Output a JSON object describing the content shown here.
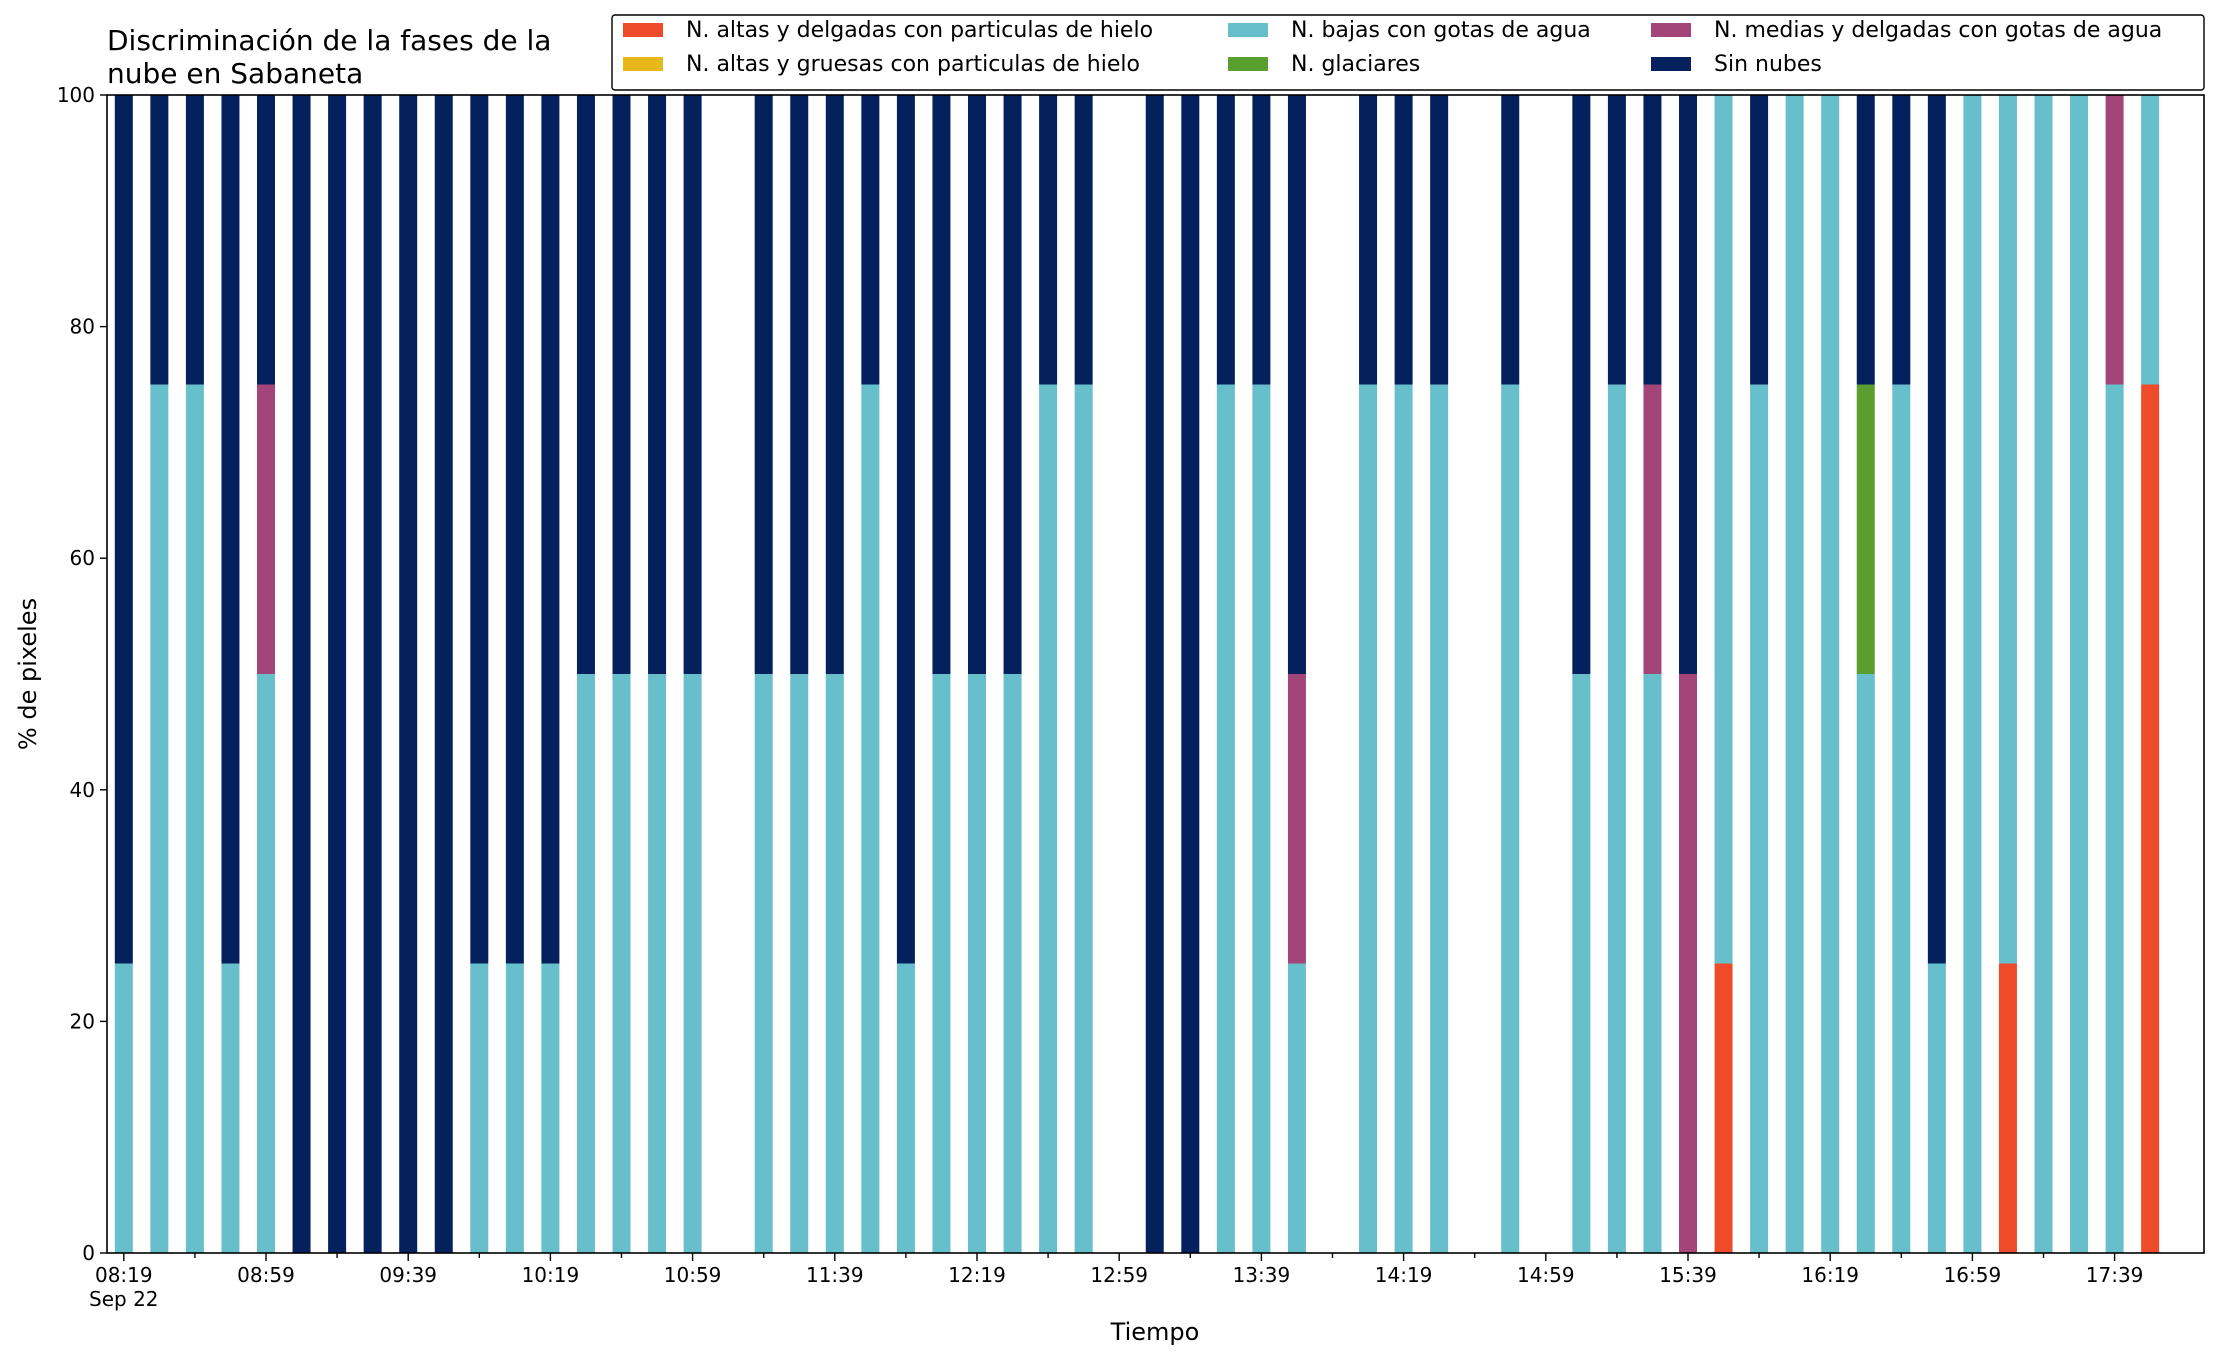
{
  "chart_data": {
    "type": "bar",
    "stacked": true,
    "title": "Discriminación de la fases de la\nnube en Sabaneta",
    "xlabel": "Tiempo",
    "ylabel": "% de pixeles",
    "ylim": [
      0,
      100
    ],
    "yticks": [
      0,
      20,
      40,
      60,
      80,
      100
    ],
    "grid": false,
    "legend_position": "top-right",
    "xtick_labels": [
      "08:19\nSep 22",
      "08:59",
      "09:39",
      "10:19",
      "10:59",
      "11:39",
      "12:19",
      "12:59",
      "13:39",
      "14:19",
      "14:59",
      "15:39",
      "16:19",
      "16:59",
      "17:39"
    ],
    "categories": [
      "08:19",
      "08:29",
      "08:39",
      "08:49",
      "08:59",
      "09:09",
      "09:19",
      "09:29",
      "09:39",
      "09:49",
      "09:59",
      "10:09",
      "10:19",
      "10:29",
      "10:39",
      "10:49",
      "10:59",
      "11:09",
      "11:19",
      "11:29",
      "11:39",
      "11:49",
      "11:59",
      "12:09",
      "12:19",
      "12:29",
      "12:39",
      "12:49",
      "12:59",
      "13:09",
      "13:19",
      "13:29",
      "13:39",
      "13:49",
      "13:59",
      "14:09",
      "14:19",
      "14:29",
      "14:39",
      "14:49",
      "14:59",
      "15:09",
      "15:19",
      "15:29",
      "15:39",
      "15:49",
      "15:59",
      "16:09",
      "16:19",
      "16:29",
      "16:39",
      "16:49",
      "16:59",
      "17:09",
      "17:19",
      "17:29",
      "17:39",
      "17:49"
    ],
    "series": [
      {
        "name": "N. altas y delgadas con particulas de hielo",
        "color": "#ee4b2b",
        "values": [
          0,
          0,
          0,
          0,
          0,
          0,
          0,
          0,
          0,
          0,
          0,
          0,
          0,
          0,
          0,
          0,
          0,
          0,
          0,
          0,
          0,
          0,
          0,
          0,
          0,
          0,
          0,
          0,
          0,
          0,
          0,
          0,
          0,
          0,
          0,
          0,
          0,
          0,
          0,
          0,
          0,
          0,
          0,
          0,
          0,
          25,
          0,
          0,
          0,
          0,
          0,
          0,
          0,
          25,
          0,
          0,
          0,
          75
        ]
      },
      {
        "name": "N. altas y gruesas con particulas de hielo",
        "color": "#e6b81a",
        "values": [
          0,
          0,
          0,
          0,
          0,
          0,
          0,
          0,
          0,
          0,
          0,
          0,
          0,
          0,
          0,
          0,
          0,
          0,
          0,
          0,
          0,
          0,
          0,
          0,
          0,
          0,
          0,
          0,
          0,
          0,
          0,
          0,
          0,
          0,
          0,
          0,
          0,
          0,
          0,
          0,
          0,
          0,
          0,
          0,
          0,
          0,
          0,
          0,
          0,
          0,
          0,
          0,
          0,
          0,
          0,
          0,
          0,
          0
        ]
      },
      {
        "name": "N. bajas con gotas de agua",
        "color": "#66bfcb",
        "values": [
          25,
          75,
          75,
          25,
          50,
          0,
          0,
          0,
          0,
          0,
          25,
          25,
          25,
          50,
          50,
          50,
          50,
          0,
          50,
          50,
          50,
          75,
          25,
          50,
          50,
          50,
          75,
          75,
          0,
          0,
          0,
          75,
          75,
          25,
          0,
          75,
          75,
          75,
          0,
          75,
          0,
          50,
          75,
          50,
          0,
          75,
          75,
          100,
          100,
          50,
          75,
          25,
          100,
          75,
          100,
          100,
          75,
          25
        ]
      },
      {
        "name": "N. glaciares",
        "color": "#5a9e2f",
        "values": [
          0,
          0,
          0,
          0,
          0,
          0,
          0,
          0,
          0,
          0,
          0,
          0,
          0,
          0,
          0,
          0,
          0,
          0,
          0,
          0,
          0,
          0,
          0,
          0,
          0,
          0,
          0,
          0,
          0,
          0,
          0,
          0,
          0,
          0,
          0,
          0,
          0,
          0,
          0,
          0,
          0,
          0,
          0,
          0,
          0,
          0,
          0,
          0,
          0,
          25,
          0,
          0,
          0,
          0,
          0,
          0,
          0,
          0
        ]
      },
      {
        "name": "N. medias y delgadas con gotas de agua",
        "color": "#a34579",
        "values": [
          0,
          0,
          0,
          0,
          25,
          0,
          0,
          0,
          0,
          0,
          0,
          0,
          0,
          0,
          0,
          0,
          0,
          0,
          0,
          0,
          0,
          0,
          0,
          0,
          0,
          0,
          0,
          0,
          0,
          0,
          0,
          0,
          0,
          25,
          0,
          0,
          0,
          0,
          0,
          0,
          0,
          0,
          0,
          25,
          50,
          0,
          0,
          0,
          0,
          0,
          0,
          0,
          0,
          0,
          0,
          0,
          25,
          0
        ]
      },
      {
        "name": "Sin nubes",
        "color": "#04215e",
        "values": [
          75,
          25,
          25,
          75,
          25,
          100,
          100,
          100,
          100,
          100,
          75,
          75,
          75,
          50,
          50,
          50,
          50,
          0,
          50,
          50,
          50,
          25,
          75,
          50,
          50,
          50,
          25,
          25,
          0,
          100,
          100,
          25,
          25,
          50,
          0,
          25,
          25,
          25,
          0,
          25,
          0,
          50,
          25,
          25,
          50,
          0,
          25,
          0,
          0,
          25,
          25,
          75,
          0,
          0,
          0,
          0,
          0,
          0
        ]
      }
    ]
  }
}
